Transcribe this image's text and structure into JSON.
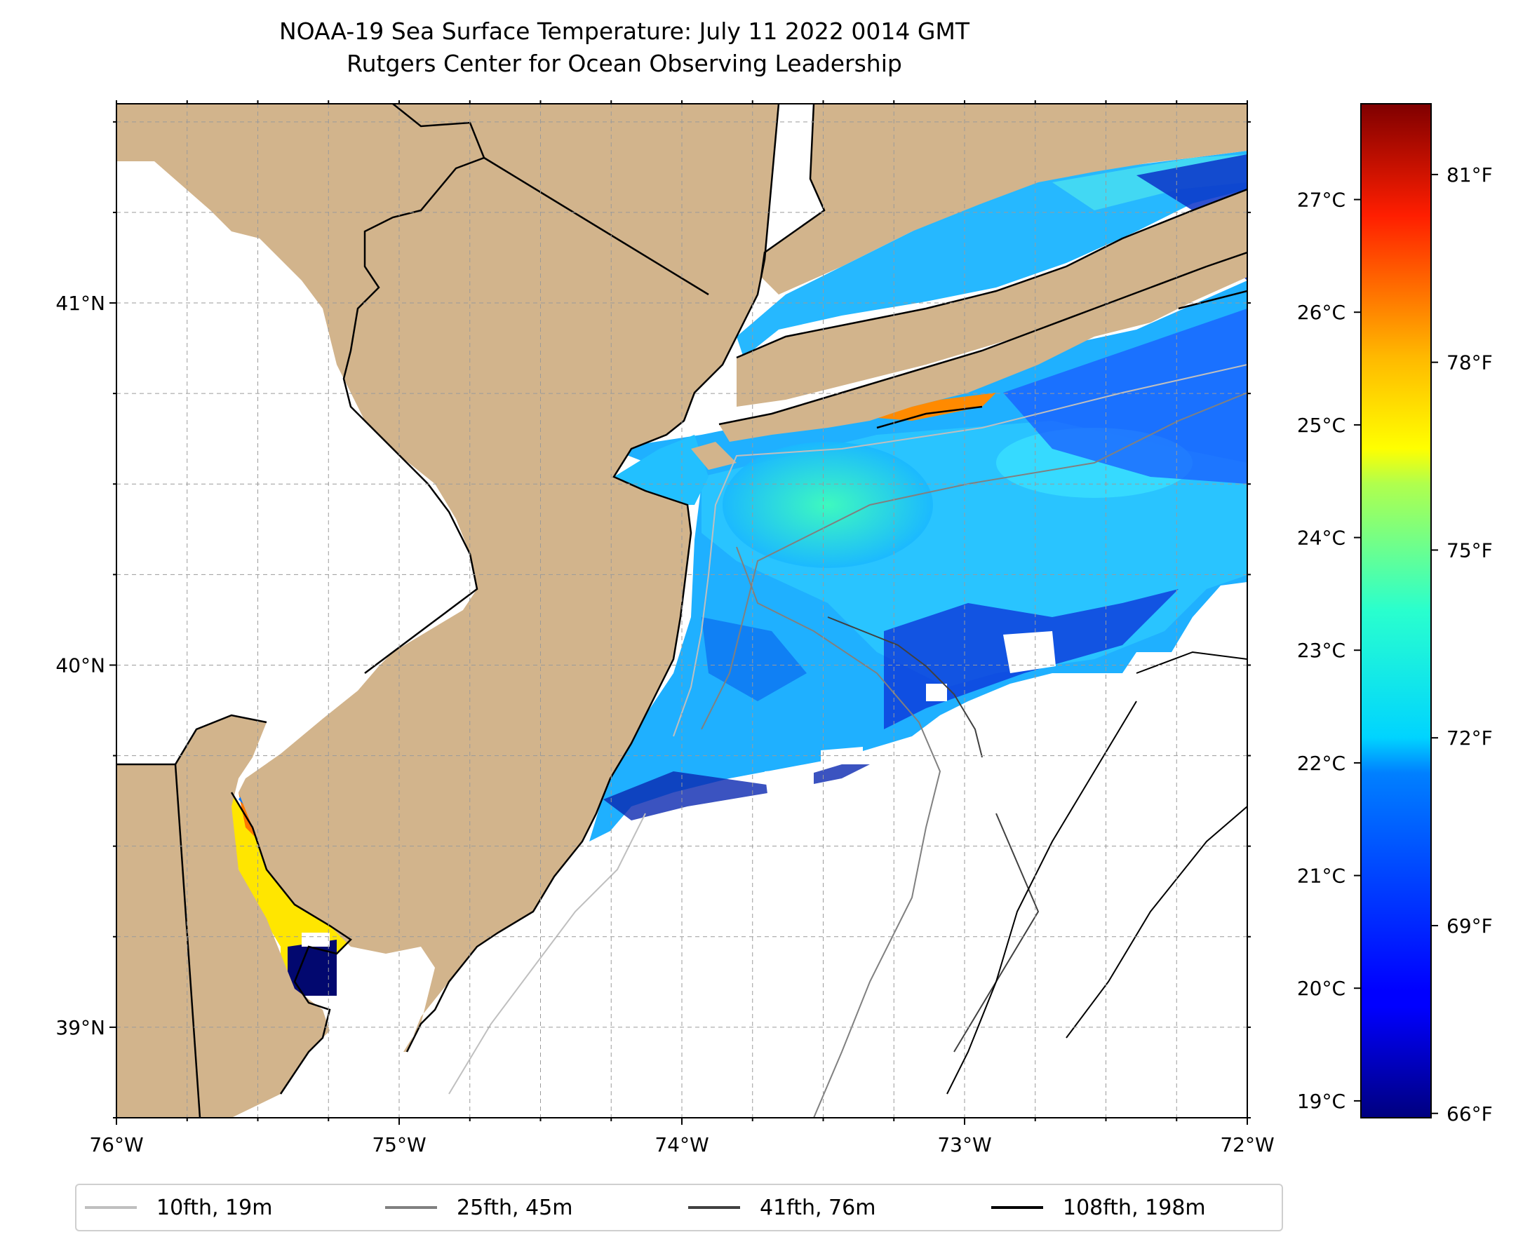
{
  "title": {
    "line1": "NOAA-19 Sea Surface Temperature: July 11 2022 0014 GMT",
    "line2": "Rutgers Center for Ocean Observing Leadership"
  },
  "map": {
    "lon_range": [
      -76,
      -72
    ],
    "lat_range": [
      38.75,
      41.55
    ],
    "land_color": "#d2b48c",
    "ocean_nodata_color": "#ffffff",
    "lon_ticks": [
      {
        "value": -76,
        "label": "76°W"
      },
      {
        "value": -75,
        "label": "75°W"
      },
      {
        "value": -74,
        "label": "74°W"
      },
      {
        "value": -73,
        "label": "73°W"
      },
      {
        "value": -72,
        "label": "72°W"
      }
    ],
    "lat_ticks": [
      {
        "value": 41,
        "label": "41°N"
      },
      {
        "value": 40,
        "label": "40°N"
      },
      {
        "value": 39,
        "label": "39°N"
      }
    ],
    "grid": "dashed, every 0.25°"
  },
  "colorbar": {
    "colormap": "jet",
    "celsius_range": [
      18.85,
      27.85
    ],
    "celsius_ticks": [
      {
        "value": 19,
        "label": "19°C"
      },
      {
        "value": 20,
        "label": "20°C"
      },
      {
        "value": 21,
        "label": "21°C"
      },
      {
        "value": 22,
        "label": "22°C"
      },
      {
        "value": 23,
        "label": "23°C"
      },
      {
        "value": 24,
        "label": "24°C"
      },
      {
        "value": 25,
        "label": "25°C"
      },
      {
        "value": 26,
        "label": "26°C"
      },
      {
        "value": 27,
        "label": "27°C"
      }
    ],
    "fahrenheit_ticks": [
      {
        "value": 66,
        "label": "66°F"
      },
      {
        "value": 69,
        "label": "69°F"
      },
      {
        "value": 72,
        "label": "72°F"
      },
      {
        "value": 75,
        "label": "75°F"
      },
      {
        "value": 78,
        "label": "78°F"
      },
      {
        "value": 81,
        "label": "81°F"
      }
    ]
  },
  "legend": [
    {
      "label": "10fth, 19m",
      "color": "#bfbfbf"
    },
    {
      "label": "25fth, 45m",
      "color": "#808080"
    },
    {
      "label": "41fth, 76m",
      "color": "#404040"
    },
    {
      "label": "108fth, 198m",
      "color": "#000000"
    }
  ]
}
